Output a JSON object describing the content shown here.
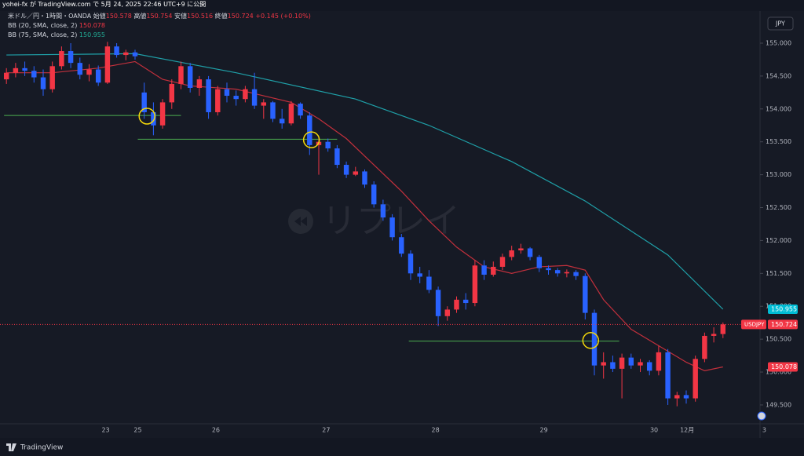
{
  "chart_data": {
    "type": "candlestick",
    "header": "yohei-fx が TradingView.com で 5月 24, 2025 22:46 UTC+9 に公開",
    "title": "米ドル／円・1時間・OANDA",
    "ohlc_labels": [
      "始値",
      "高値",
      "安値",
      "終値"
    ],
    "change": "+0.145 (+0.10%)",
    "symbol": "USDJPY",
    "currency": "JPY",
    "watermark": "リプレイ",
    "brand": "TradingView",
    "up_color": "#f23645",
    "down_color": "#2962ff",
    "ohlc": [
      [
        154.45,
        154.62,
        154.38,
        154.55
      ],
      [
        154.55,
        154.7,
        154.48,
        154.62
      ],
      [
        154.62,
        154.72,
        154.5,
        154.58
      ],
      [
        154.58,
        154.65,
        154.4,
        154.48
      ],
      [
        154.48,
        154.6,
        154.2,
        154.3
      ],
      [
        154.3,
        154.72,
        154.25,
        154.65
      ],
      [
        154.65,
        154.95,
        154.6,
        154.88
      ],
      [
        154.88,
        155.0,
        154.62,
        154.7
      ],
      [
        154.7,
        154.78,
        154.45,
        154.52
      ],
      [
        154.52,
        154.68,
        154.42,
        154.6
      ],
      [
        154.6,
        154.66,
        154.35,
        154.4
      ],
      [
        154.4,
        155.02,
        154.38,
        154.95
      ],
      [
        154.95,
        155.0,
        154.78,
        154.82
      ],
      [
        154.82,
        154.9,
        154.74,
        154.86
      ],
      [
        154.86,
        154.9,
        154.75,
        154.8
      ],
      [
        154.25,
        154.4,
        153.85,
        153.95
      ],
      [
        153.95,
        154.1,
        153.6,
        153.75
      ],
      [
        153.75,
        154.15,
        153.7,
        154.1
      ],
      [
        154.1,
        154.45,
        154.0,
        154.38
      ],
      [
        154.38,
        154.72,
        154.3,
        154.65
      ],
      [
        154.65,
        154.7,
        154.25,
        154.32
      ],
      [
        154.32,
        154.5,
        154.2,
        154.45
      ],
      [
        154.45,
        154.5,
        153.85,
        153.95
      ],
      [
        153.95,
        154.35,
        153.9,
        154.3
      ],
      [
        154.3,
        154.4,
        154.1,
        154.2
      ],
      [
        154.2,
        154.28,
        154.05,
        154.15
      ],
      [
        154.15,
        154.35,
        154.1,
        154.3
      ],
      [
        154.3,
        154.55,
        154.0,
        154.05
      ],
      [
        154.05,
        154.15,
        153.85,
        154.1
      ],
      [
        154.1,
        154.12,
        153.8,
        153.85
      ],
      [
        153.85,
        154.0,
        153.7,
        153.78
      ],
      [
        153.78,
        154.12,
        153.75,
        154.08
      ],
      [
        154.08,
        154.1,
        153.85,
        153.9
      ],
      [
        153.9,
        153.95,
        153.3,
        153.45
      ],
      [
        153.45,
        153.58,
        153.0,
        153.5
      ],
      [
        153.5,
        153.55,
        153.35,
        153.4
      ],
      [
        153.4,
        153.45,
        153.1,
        153.15
      ],
      [
        153.15,
        153.2,
        152.95,
        153.0
      ],
      [
        153.0,
        153.12,
        152.98,
        153.05
      ],
      [
        153.05,
        153.08,
        152.8,
        152.85
      ],
      [
        152.85,
        152.9,
        152.5,
        152.55
      ],
      [
        152.55,
        152.62,
        152.3,
        152.35
      ],
      [
        152.35,
        152.4,
        152.0,
        152.05
      ],
      [
        152.05,
        152.1,
        151.75,
        151.8
      ],
      [
        151.8,
        151.85,
        151.4,
        151.5
      ],
      [
        151.5,
        151.6,
        151.35,
        151.45
      ],
      [
        151.45,
        151.55,
        151.2,
        151.25
      ],
      [
        151.25,
        151.3,
        150.7,
        150.85
      ],
      [
        150.85,
        151.0,
        150.78,
        150.95
      ],
      [
        150.95,
        151.15,
        150.9,
        151.1
      ],
      [
        151.1,
        151.2,
        150.95,
        151.05
      ],
      [
        151.05,
        151.7,
        151.0,
        151.62
      ],
      [
        151.62,
        151.7,
        151.4,
        151.48
      ],
      [
        151.48,
        151.68,
        151.45,
        151.6
      ],
      [
        151.6,
        151.8,
        151.55,
        151.75
      ],
      [
        151.75,
        151.92,
        151.7,
        151.85
      ],
      [
        151.85,
        151.95,
        151.8,
        151.88
      ],
      [
        151.88,
        151.9,
        151.7,
        151.75
      ],
      [
        151.75,
        151.78,
        151.52,
        151.58
      ],
      [
        151.58,
        151.62,
        151.48,
        151.55
      ],
      [
        151.55,
        151.58,
        151.45,
        151.5
      ],
      [
        151.5,
        151.56,
        151.44,
        151.52
      ],
      [
        151.52,
        151.55,
        151.4,
        151.46
      ],
      [
        151.46,
        151.5,
        150.8,
        150.9
      ],
      [
        150.9,
        150.95,
        149.95,
        150.1
      ],
      [
        150.1,
        150.3,
        149.9,
        150.15
      ],
      [
        150.15,
        150.25,
        150.0,
        150.05
      ],
      [
        150.05,
        150.28,
        149.6,
        150.22
      ],
      [
        150.22,
        150.28,
        150.05,
        150.1
      ],
      [
        150.1,
        150.2,
        150.0,
        150.15
      ],
      [
        150.15,
        150.18,
        149.95,
        150.02
      ],
      [
        150.02,
        150.4,
        149.95,
        150.3
      ],
      [
        150.3,
        150.35,
        149.5,
        149.6
      ],
      [
        149.6,
        149.7,
        149.48,
        149.65
      ],
      [
        149.65,
        149.72,
        149.52,
        149.6
      ],
      [
        149.6,
        150.25,
        149.55,
        150.2
      ],
      [
        150.2,
        150.6,
        150.15,
        150.55
      ],
      [
        150.55,
        150.68,
        150.45,
        150.58
      ],
      [
        150.578,
        150.754,
        150.516,
        150.724
      ]
    ],
    "series": [
      {
        "name": "BB (20, SMA, close, 2)",
        "color": "#c2303c",
        "x": [
          0,
          5,
          10,
          14,
          17,
          20,
          25,
          28,
          31,
          34,
          37,
          40,
          43,
          46,
          49,
          52,
          55,
          58,
          61,
          63,
          65,
          68,
          71,
          74,
          76,
          78
        ],
        "values": [
          154.55,
          154.55,
          154.62,
          154.72,
          154.45,
          154.35,
          154.3,
          154.2,
          154.1,
          153.85,
          153.55,
          153.15,
          152.75,
          152.3,
          151.9,
          151.6,
          151.5,
          151.6,
          151.62,
          151.55,
          151.1,
          150.65,
          150.4,
          150.15,
          150.02,
          150.078
        ]
      },
      {
        "name": "BB (75, SMA, close, 2)",
        "color": "#1fa0a8",
        "x": [
          0,
          14,
          25,
          38,
          46,
          55,
          63,
          72,
          78
        ],
        "values": [
          154.82,
          154.84,
          154.55,
          154.15,
          153.75,
          153.2,
          152.6,
          151.78,
          150.955
        ]
      }
    ],
    "levels": [
      {
        "y": 153.9,
        "x": [
          -0.26,
          19
        ]
      },
      {
        "y": 153.54,
        "x": [
          14.3,
          36
        ]
      },
      {
        "y": 150.47,
        "x": [
          43.8,
          66.7
        ]
      }
    ],
    "markers": [
      {
        "x": 15.3,
        "y": 153.89
      },
      {
        "x": 33.2,
        "y": 153.53
      },
      {
        "x": 63.6,
        "y": 150.48
      }
    ],
    "xlim": [
      -0.7,
      83.06
    ],
    "ylim": [
      149.213,
      155.489
    ],
    "xticks": [
      {
        "value": 10.8,
        "label": "23"
      },
      {
        "value": 14.3,
        "label": "25"
      },
      {
        "value": 22.8,
        "label": "26"
      },
      {
        "value": 34.8,
        "label": "27"
      },
      {
        "value": 46.7,
        "label": "28"
      },
      {
        "value": 58.5,
        "label": "29"
      },
      {
        "value": 70.5,
        "label": "30"
      },
      {
        "value": 74.1,
        "label": "12月"
      },
      {
        "value": 82.5,
        "label": "3"
      }
    ],
    "yticks": [
      {
        "value": 149.5,
        "label": "149.500"
      },
      {
        "value": 150,
        "label": "150.000"
      },
      {
        "value": 150.5,
        "label": "150.500"
      },
      {
        "value": 151,
        "label": "151.000"
      },
      {
        "value": 151.5,
        "label": "151.500"
      },
      {
        "value": 152,
        "label": "152.000"
      },
      {
        "value": 152.5,
        "label": "152.500"
      },
      {
        "value": 153,
        "label": "153.000"
      },
      {
        "value": 153.5,
        "label": "153.500"
      },
      {
        "value": 154,
        "label": "154.000"
      },
      {
        "value": 154.5,
        "label": "154.500"
      },
      {
        "value": 155,
        "label": "155.000"
      }
    ],
    "grid": false
  }
}
